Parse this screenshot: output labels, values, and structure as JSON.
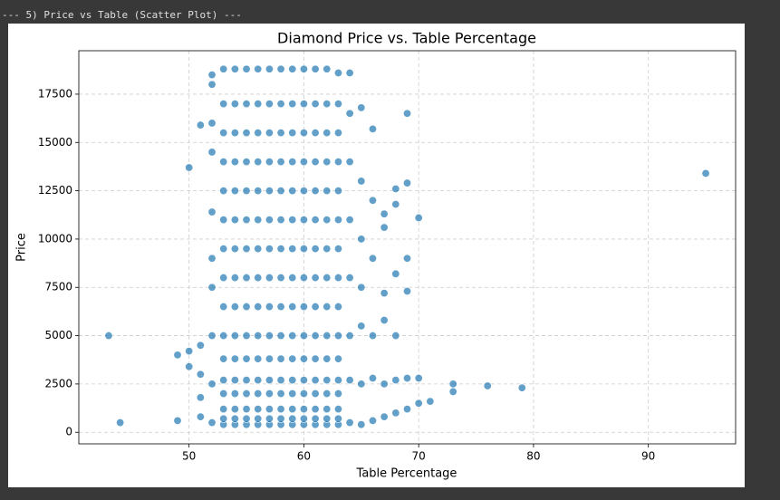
{
  "header": "--- 5) Price vs Table (Scatter Plot) ---",
  "chart_data": {
    "type": "scatter",
    "title": "Diamond Price vs. Table Percentage",
    "x_label": "Table Percentage",
    "y_label": "Price",
    "color": "#1f77b4",
    "grid": true,
    "xlim": [
      40.4,
      97.6
    ],
    "xticks": [
      50,
      60,
      70,
      80,
      90
    ],
    "ylim": [
      -599,
      19748
    ],
    "yticks": [
      0,
      2500,
      5000,
      7500,
      10000,
      12500,
      15000,
      17500
    ],
    "x": [
      53,
      53,
      53,
      53,
      53,
      53,
      53,
      53,
      53,
      53,
      53,
      53,
      53,
      53,
      53,
      53,
      54,
      54,
      54,
      54,
      54,
      54,
      54,
      54,
      54,
      54,
      54,
      54,
      54,
      54,
      54,
      54,
      55,
      55,
      55,
      55,
      55,
      55,
      55,
      55,
      55,
      55,
      55,
      55,
      55,
      55,
      55,
      55,
      56,
      56,
      56,
      56,
      56,
      56,
      56,
      56,
      56,
      56,
      56,
      56,
      56,
      56,
      56,
      56,
      57,
      57,
      57,
      57,
      57,
      57,
      57,
      57,
      57,
      57,
      57,
      57,
      57,
      57,
      57,
      57,
      58,
      58,
      58,
      58,
      58,
      58,
      58,
      58,
      58,
      58,
      58,
      58,
      58,
      58,
      58,
      58,
      59,
      59,
      59,
      59,
      59,
      59,
      59,
      59,
      59,
      59,
      59,
      59,
      59,
      59,
      59,
      59,
      60,
      60,
      60,
      60,
      60,
      60,
      60,
      60,
      60,
      60,
      60,
      60,
      60,
      60,
      60,
      60,
      61,
      61,
      61,
      61,
      61,
      61,
      61,
      61,
      61,
      61,
      61,
      61,
      61,
      61,
      61,
      61,
      62,
      62,
      62,
      62,
      62,
      62,
      62,
      62,
      62,
      62,
      62,
      62,
      62,
      62,
      62,
      62,
      63,
      63,
      63,
      63,
      63,
      63,
      63,
      63,
      63,
      63,
      63,
      63,
      63,
      63,
      63,
      63,
      52,
      52,
      52,
      52,
      52,
      52,
      52,
      52,
      52,
      52,
      64,
      64,
      64,
      64,
      64,
      64,
      64,
      64,
      65,
      65,
      65,
      65,
      65,
      65,
      65,
      66,
      66,
      66,
      66,
      66,
      66,
      67,
      67,
      67,
      67,
      67,
      67,
      68,
      68,
      68,
      68,
      68,
      68,
      69,
      69,
      69,
      69,
      69,
      69,
      70,
      70,
      70,
      71,
      73,
      73,
      76,
      79,
      95,
      43,
      44,
      49,
      49,
      50,
      50,
      50,
      51,
      51,
      51,
      51,
      51
    ],
    "values": [
      400,
      700,
      1200,
      2000,
      2700,
      3800,
      5000,
      6500,
      8000,
      9500,
      11000,
      12500,
      14000,
      15500,
      17000,
      18800,
      400,
      700,
      1200,
      2000,
      2700,
      3800,
      5000,
      6500,
      8000,
      9500,
      11000,
      12500,
      14000,
      15500,
      17000,
      18800,
      400,
      700,
      1200,
      2000,
      2700,
      3800,
      5000,
      6500,
      8000,
      9500,
      11000,
      12500,
      14000,
      15500,
      17000,
      18800,
      400,
      700,
      1200,
      2000,
      2700,
      3800,
      5000,
      6500,
      8000,
      9500,
      11000,
      12500,
      14000,
      15500,
      17000,
      18800,
      400,
      700,
      1200,
      2000,
      2700,
      3800,
      5000,
      6500,
      8000,
      9500,
      11000,
      12500,
      14000,
      15500,
      17000,
      18800,
      400,
      700,
      1200,
      2000,
      2700,
      3800,
      5000,
      6500,
      8000,
      9500,
      11000,
      12500,
      14000,
      15500,
      17000,
      18800,
      400,
      700,
      1200,
      2000,
      2700,
      3800,
      5000,
      6500,
      8000,
      9500,
      11000,
      12500,
      14000,
      15500,
      17000,
      18800,
      400,
      700,
      1200,
      2000,
      2700,
      3800,
      5000,
      6500,
      8000,
      9500,
      11000,
      12500,
      14000,
      15500,
      17000,
      18800,
      400,
      700,
      1200,
      2000,
      2700,
      3800,
      5000,
      6500,
      8000,
      9500,
      11000,
      12500,
      14000,
      15500,
      17000,
      18800,
      400,
      700,
      1200,
      2000,
      2700,
      3800,
      5000,
      6500,
      8000,
      9500,
      11000,
      12500,
      14000,
      15500,
      17000,
      18800,
      400,
      700,
      1200,
      2000,
      2700,
      3800,
      5000,
      6500,
      8000,
      9500,
      11000,
      12500,
      14000,
      15500,
      17000,
      18600,
      500,
      2500,
      5000,
      7500,
      9000,
      11400,
      14500,
      16000,
      18000,
      18500,
      500,
      2700,
      5000,
      8000,
      11000,
      14000,
      16500,
      18600,
      400,
      2500,
      5500,
      7500,
      10000,
      13000,
      16800,
      600,
      2800,
      5000,
      9000,
      12000,
      15700,
      800,
      2500,
      5800,
      7200,
      10600,
      11300,
      1000,
      2700,
      5000,
      8200,
      11800,
      12600,
      1200,
      2800,
      7300,
      9000,
      12900,
      16500,
      1500,
      2800,
      11100,
      1600,
      2100,
      2500,
      2400,
      2300,
      13400,
      5000,
      500,
      600,
      4000,
      4200,
      3400,
      13700,
      800,
      1800,
      3000,
      4500,
      15900
    ]
  }
}
